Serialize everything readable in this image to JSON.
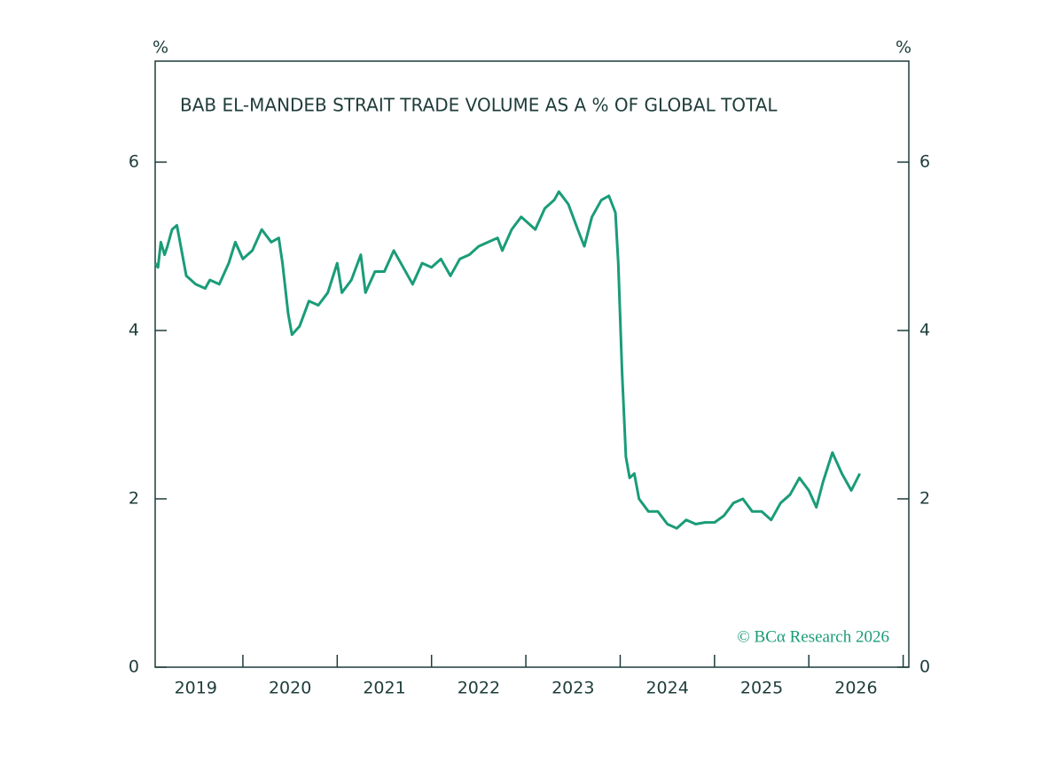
{
  "chart_data": {
    "type": "line",
    "title": "BAB EL-MANDEB STRAIT TRADE VOLUME AS A % OF GLOBAL TOTAL",
    "y_label": "%",
    "source": "© BCα Research 2026",
    "xlim": [
      2019.07,
      2027.06
    ],
    "xticks": [
      2020,
      2021,
      2022,
      2023,
      2024,
      2025,
      2026,
      2027
    ],
    "xlabels": [
      {
        "value": 2019.5,
        "label": "2019"
      },
      {
        "value": 2020.5,
        "label": "2020"
      },
      {
        "value": 2021.5,
        "label": "2021"
      },
      {
        "value": 2022.5,
        "label": "2022"
      },
      {
        "value": 2023.5,
        "label": "2023"
      },
      {
        "value": 2024.5,
        "label": "2024"
      },
      {
        "value": 2025.5,
        "label": "2025"
      },
      {
        "value": 2026.5,
        "label": "2026"
      }
    ],
    "ylim": [
      0,
      7.2
    ],
    "yticks": [
      0,
      2,
      4,
      6
    ],
    "x": [
      2019.07,
      2019.1,
      2019.13,
      2019.17,
      2019.2,
      2019.25,
      2019.3,
      2019.35,
      2019.4,
      2019.5,
      2019.6,
      2019.65,
      2019.75,
      2019.85,
      2019.92,
      2020.0,
      2020.1,
      2020.2,
      2020.3,
      2020.38,
      2020.42,
      2020.48,
      2020.52,
      2020.6,
      2020.7,
      2020.8,
      2020.9,
      2021.0,
      2021.05,
      2021.15,
      2021.25,
      2021.3,
      2021.4,
      2021.5,
      2021.6,
      2021.7,
      2021.8,
      2021.9,
      2022.0,
      2022.1,
      2022.2,
      2022.3,
      2022.4,
      2022.5,
      2022.6,
      2022.7,
      2022.75,
      2022.85,
      2022.95,
      2023.0,
      2023.1,
      2023.2,
      2023.3,
      2023.35,
      2023.45,
      2023.55,
      2023.62,
      2023.7,
      2023.8,
      2023.88,
      2023.95,
      2023.98,
      2024.02,
      2024.06,
      2024.1,
      2024.15,
      2024.2,
      2024.3,
      2024.4,
      2024.5,
      2024.6,
      2024.7,
      2024.8,
      2024.9,
      2025.0,
      2025.1,
      2025.2,
      2025.3,
      2025.4,
      2025.5,
      2025.6,
      2025.7,
      2025.8,
      2025.9,
      2026.0,
      2026.08,
      2026.15,
      2026.25,
      2026.35,
      2026.45,
      2026.54
    ],
    "series": [
      {
        "color": "#1a9c78",
        "values": [
          4.8,
          4.75,
          5.05,
          4.9,
          5.0,
          5.2,
          5.25,
          4.95,
          4.65,
          4.55,
          4.5,
          4.6,
          4.55,
          4.8,
          5.05,
          4.85,
          4.95,
          5.2,
          5.05,
          5.1,
          4.8,
          4.2,
          3.95,
          4.05,
          4.35,
          4.3,
          4.45,
          4.8,
          4.45,
          4.6,
          4.9,
          4.45,
          4.7,
          4.7,
          4.95,
          4.75,
          4.55,
          4.8,
          4.75,
          4.85,
          4.65,
          4.85,
          4.9,
          5.0,
          5.05,
          5.1,
          4.95,
          5.2,
          5.35,
          5.3,
          5.2,
          5.45,
          5.55,
          5.65,
          5.5,
          5.2,
          5.0,
          5.35,
          5.55,
          5.6,
          5.4,
          4.8,
          3.5,
          2.5,
          2.25,
          2.3,
          2.0,
          1.85,
          1.85,
          1.7,
          1.65,
          1.75,
          1.7,
          1.72,
          1.72,
          1.8,
          1.95,
          2.0,
          1.85,
          1.85,
          1.75,
          1.95,
          2.05,
          2.25,
          2.1,
          1.9,
          2.2,
          2.55,
          2.3,
          2.1,
          2.3
        ]
      }
    ]
  }
}
